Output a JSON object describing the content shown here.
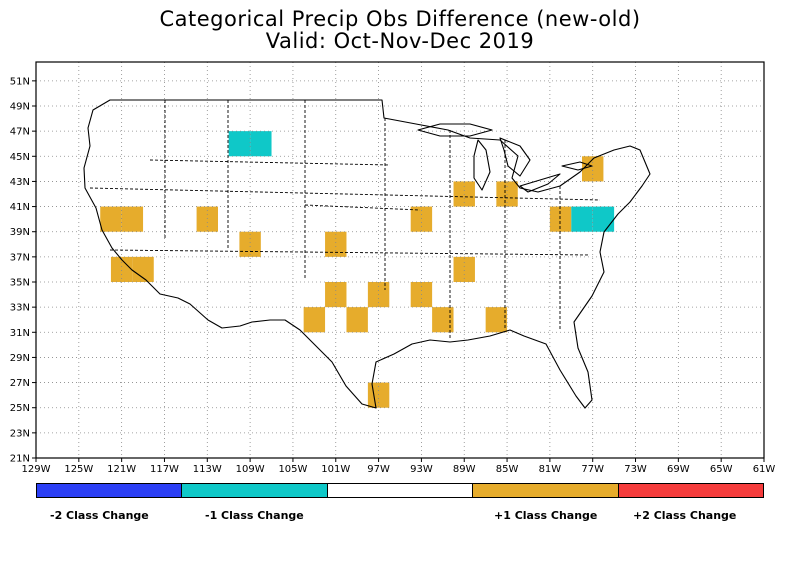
{
  "title": {
    "line1": "Categorical Precip Obs Difference (new-old)",
    "line2": "Valid: Oct-Nov-Dec 2019"
  },
  "axes": {
    "x_ticks": [
      "129W",
      "125W",
      "121W",
      "117W",
      "113W",
      "109W",
      "105W",
      "101W",
      "97W",
      "93W",
      "89W",
      "85W",
      "81W",
      "77W",
      "73W",
      "69W",
      "65W",
      "61W"
    ],
    "x_values": [
      -129,
      -125,
      -121,
      -117,
      -113,
      -109,
      -105,
      -101,
      -97,
      -93,
      -89,
      -85,
      -81,
      -77,
      -73,
      -69,
      -65,
      -61
    ],
    "y_ticks": [
      "21N",
      "23N",
      "25N",
      "27N",
      "29N",
      "31N",
      "33N",
      "35N",
      "37N",
      "39N",
      "41N",
      "43N",
      "45N",
      "47N",
      "49N",
      "51N"
    ],
    "y_values": [
      21,
      23,
      25,
      27,
      29,
      31,
      33,
      35,
      37,
      39,
      41,
      43,
      45,
      47,
      49,
      51
    ],
    "lon_range": [
      -129,
      -61
    ],
    "lat_range": [
      21,
      52.5
    ],
    "grid": true
  },
  "colors": {
    "minus2": "#2b3ff5",
    "minus1": "#0fc8c8",
    "zero": "#ffffff",
    "plus1": "#e6ac2c",
    "plus2": "#f53c3c"
  },
  "legend": {
    "labels": [
      "-2 Class Change",
      "-1 Class Change",
      "+1 Class Change",
      "+2 Class Change"
    ]
  },
  "chart_data": {
    "type": "heatmap",
    "cell_size_deg": 2,
    "cells": [
      {
        "lon": -122,
        "lat": 40,
        "value": 1
      },
      {
        "lon": -120,
        "lat": 40,
        "value": 1
      },
      {
        "lon": -121,
        "lat": 36,
        "value": 1
      },
      {
        "lon": -119,
        "lat": 36,
        "value": 1
      },
      {
        "lon": -113,
        "lat": 40,
        "value": 1
      },
      {
        "lon": -109,
        "lat": 38,
        "value": 1
      },
      {
        "lon": -110,
        "lat": 46,
        "value": -1
      },
      {
        "lon": -108,
        "lat": 46,
        "value": -1
      },
      {
        "lon": -101,
        "lat": 38,
        "value": 1
      },
      {
        "lon": -101,
        "lat": 34,
        "value": 1
      },
      {
        "lon": -103,
        "lat": 32,
        "value": 1
      },
      {
        "lon": -99,
        "lat": 32,
        "value": 1
      },
      {
        "lon": -97,
        "lat": 34,
        "value": 1
      },
      {
        "lon": -97,
        "lat": 26,
        "value": 1
      },
      {
        "lon": -93,
        "lat": 40,
        "value": 1
      },
      {
        "lon": -93,
        "lat": 34,
        "value": 1
      },
      {
        "lon": -91,
        "lat": 32,
        "value": 1
      },
      {
        "lon": -89,
        "lat": 42,
        "value": 1
      },
      {
        "lon": -89,
        "lat": 36,
        "value": 1
      },
      {
        "lon": -85,
        "lat": 42,
        "value": 1
      },
      {
        "lon": -86,
        "lat": 32,
        "value": 1
      },
      {
        "lon": -80,
        "lat": 40,
        "value": 1
      },
      {
        "lon": -78,
        "lat": 40,
        "value": -1
      },
      {
        "lon": -76,
        "lat": 40,
        "value": -1
      },
      {
        "lon": -77,
        "lat": 44,
        "value": 1
      }
    ]
  }
}
